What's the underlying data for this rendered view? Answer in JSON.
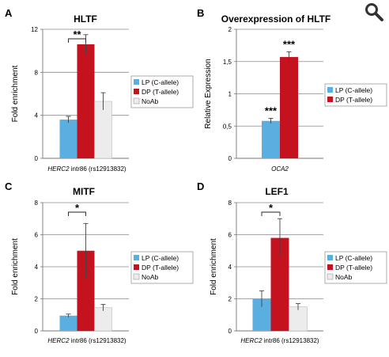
{
  "toolbar": {
    "zoom_icon": "magnifier-icon"
  },
  "colors": {
    "lp": "#5aaee0",
    "dp": "#c4121e",
    "noab": "#ececec",
    "axis": "#777777",
    "grid": "#8a8a8a"
  },
  "chart_data": [
    {
      "panel": "A",
      "type": "bar",
      "title": "HLTF",
      "ylabel": "Fold enrichment",
      "xlabel_italic": "HERC2",
      "xlabel_rest": " intr86 (rs12913832)",
      "ylim": [
        0,
        12
      ],
      "yticks": [
        "0",
        "4",
        "8",
        "12"
      ],
      "ytick_values": [
        0,
        4,
        8,
        12
      ],
      "grid": true,
      "legend_position": "right",
      "series": [
        {
          "name": "LP (C-allele)",
          "value": 3.6,
          "error": 0.3,
          "color": "#5aaee0"
        },
        {
          "name": "DP (T-allele)",
          "value": 10.6,
          "error": 0.9,
          "color": "#c4121e"
        },
        {
          "name": "NoAb",
          "value": 5.3,
          "error": 0.8,
          "color": "#ececec"
        }
      ],
      "significance": [
        {
          "label": "**",
          "between": [
            0,
            1
          ]
        }
      ],
      "star_labels": []
    },
    {
      "panel": "B",
      "type": "bar",
      "title": "Overexpression of HLTF",
      "ylabel": "Relative Expression",
      "xlabel_italic": "OCA2",
      "xlabel_rest": "",
      "ylim": [
        0,
        2
      ],
      "yticks": [
        "0",
        "0,5",
        "1",
        "1,5",
        "2"
      ],
      "ytick_values": [
        0,
        0.5,
        1,
        1.5,
        2
      ],
      "grid": true,
      "legend_position": "right",
      "series": [
        {
          "name": "LP (C-allele)",
          "value": 0.58,
          "error": 0.04,
          "color": "#5aaee0"
        },
        {
          "name": "DP (T-allele)",
          "value": 1.57,
          "error": 0.08,
          "color": "#c4121e"
        }
      ],
      "significance": [],
      "star_labels": [
        {
          "bar": 0,
          "label": "***"
        },
        {
          "bar": 1,
          "label": "***"
        }
      ]
    },
    {
      "panel": "C",
      "type": "bar",
      "title": "MITF",
      "ylabel": "Fold enrichment",
      "xlabel_italic": "HERC2",
      "xlabel_rest": " intr86 (rs12913832)",
      "ylim": [
        0,
        8
      ],
      "yticks": [
        "0",
        "2",
        "4",
        "6",
        "8"
      ],
      "ytick_values": [
        0,
        2,
        4,
        6,
        8
      ],
      "grid": true,
      "legend_position": "right",
      "series": [
        {
          "name": "LP (C-allele)",
          "value": 0.95,
          "error": 0.1,
          "color": "#5aaee0"
        },
        {
          "name": "DP (T-allele)",
          "value": 5.0,
          "error": 1.7,
          "color": "#c4121e"
        },
        {
          "name": "NoAb",
          "value": 1.45,
          "error": 0.2,
          "color": "#ececec"
        }
      ],
      "significance": [
        {
          "label": "*",
          "between": [
            0,
            1
          ]
        }
      ],
      "star_labels": []
    },
    {
      "panel": "D",
      "type": "bar",
      "title": "LEF1",
      "ylabel": "Fold enrichment",
      "xlabel_italic": "HERC2",
      "xlabel_rest": " intr86 (rs12913832)",
      "ylim": [
        0,
        8
      ],
      "yticks": [
        "0",
        "2",
        "4",
        "6",
        "8"
      ],
      "ytick_values": [
        0,
        2,
        4,
        6,
        8
      ],
      "grid": true,
      "legend_position": "right",
      "series": [
        {
          "name": "LP (C-allele)",
          "value": 2.0,
          "error": 0.5,
          "color": "#5aaee0"
        },
        {
          "name": "DP (T-allele)",
          "value": 5.8,
          "error": 1.2,
          "color": "#c4121e"
        },
        {
          "name": "NoAb",
          "value": 1.5,
          "error": 0.2,
          "color": "#ececec"
        }
      ],
      "significance": [
        {
          "label": "*",
          "between": [
            0,
            1
          ]
        }
      ],
      "star_labels": []
    }
  ]
}
